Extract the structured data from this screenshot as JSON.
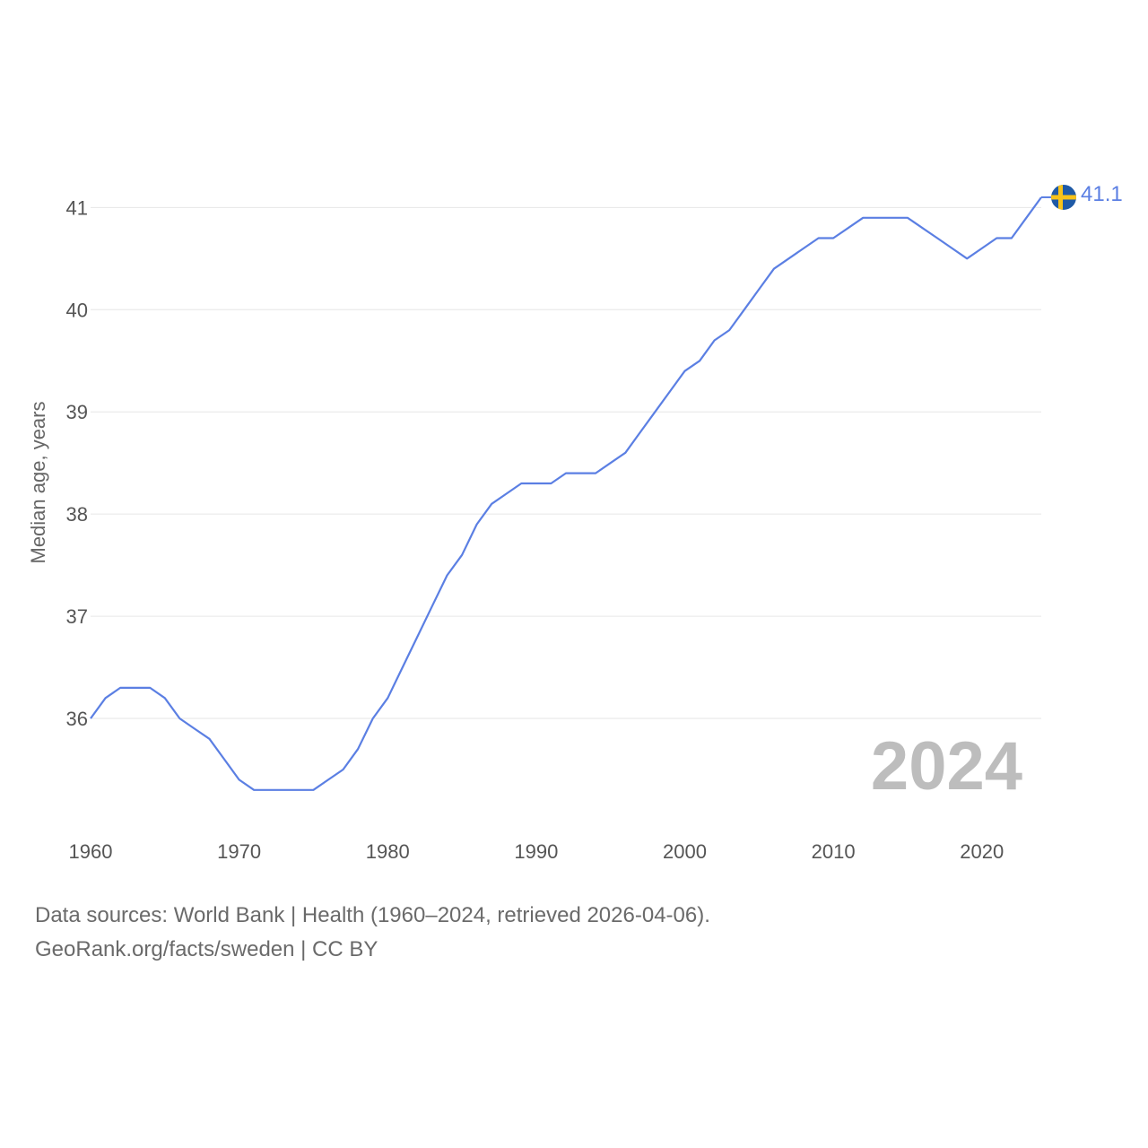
{
  "chart_data": {
    "type": "line",
    "title": "",
    "xlabel": "",
    "ylabel": "Median age, years",
    "xlim": [
      1960,
      2024
    ],
    "ylim": [
      35.0,
      41.6
    ],
    "x_ticks": [
      1960,
      1970,
      1980,
      1990,
      2000,
      2010,
      2020
    ],
    "y_ticks": [
      36,
      37,
      38,
      39,
      40,
      41
    ],
    "grid": true,
    "series": [
      {
        "name": "Sweden",
        "color": "#5b7fe3",
        "x": [
          1960,
          1961,
          1962,
          1963,
          1964,
          1965,
          1966,
          1967,
          1968,
          1969,
          1970,
          1971,
          1972,
          1973,
          1974,
          1975,
          1976,
          1977,
          1978,
          1979,
          1980,
          1981,
          1982,
          1983,
          1984,
          1985,
          1986,
          1987,
          1988,
          1989,
          1990,
          1991,
          1992,
          1993,
          1994,
          1995,
          1996,
          1997,
          1998,
          1999,
          2000,
          2001,
          2002,
          2003,
          2004,
          2005,
          2006,
          2007,
          2008,
          2009,
          2010,
          2011,
          2012,
          2013,
          2014,
          2015,
          2016,
          2017,
          2018,
          2019,
          2020,
          2021,
          2022,
          2023,
          2024
        ],
        "values": [
          36.0,
          36.2,
          36.3,
          36.3,
          36.3,
          36.2,
          36.0,
          35.9,
          35.8,
          35.6,
          35.4,
          35.3,
          35.3,
          35.3,
          35.3,
          35.3,
          35.4,
          35.5,
          35.7,
          36.0,
          36.2,
          36.5,
          36.8,
          37.1,
          37.4,
          37.6,
          37.9,
          38.1,
          38.2,
          38.3,
          38.3,
          38.3,
          38.4,
          38.4,
          38.4,
          38.5,
          38.6,
          38.8,
          39.0,
          39.2,
          39.4,
          39.5,
          39.7,
          39.8,
          40.0,
          40.2,
          40.4,
          40.5,
          40.6,
          40.7,
          40.7,
          40.8,
          40.9,
          40.9,
          40.9,
          40.9,
          40.8,
          40.7,
          40.6,
          40.5,
          40.6,
          40.7,
          40.7,
          40.9,
          41.1
        ]
      }
    ],
    "end_label": "41.1",
    "year_watermark": "2024",
    "flag_icon": "sweden-flag-icon",
    "flag_colors": {
      "blue": "#1f5aa6",
      "yellow": "#f7c31a"
    },
    "gridline_color": "#e6e6e6"
  },
  "footer": {
    "sources": "Data sources: World Bank | Health (1960–2024, retrieved 2026-04-06).",
    "credit": "GeoRank.org/facts/sweden | CC BY"
  }
}
